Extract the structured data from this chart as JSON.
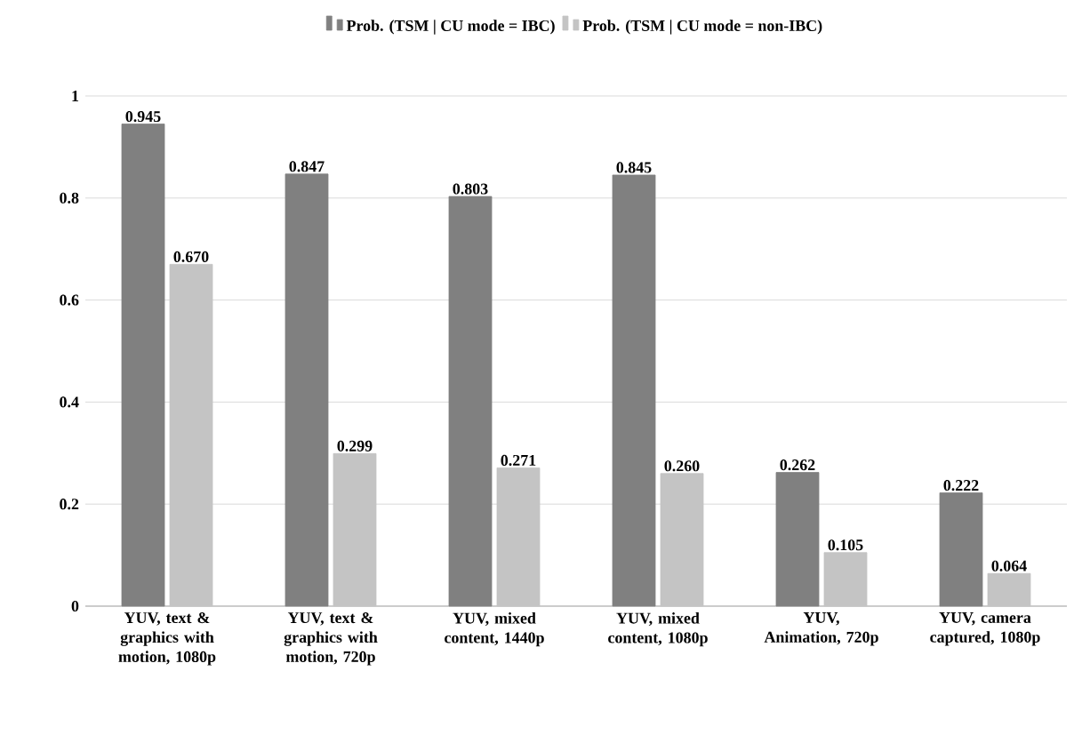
{
  "chart_data": {
    "type": "bar",
    "categories": [
      "YUV, text & graphics with motion, 1080p",
      "YUV, text & graphics with motion, 720p",
      "YUV, mixed content, 1440p",
      "YUV, mixed content, 1080p",
      "YUV, Animation, 720p",
      "YUV, camera captured, 1080p"
    ],
    "series": [
      {
        "name": "Prob. (TSM | CU mode = IBC)",
        "color": "#808080",
        "values": [
          0.945,
          0.847,
          0.803,
          0.845,
          0.262,
          0.222
        ],
        "value_labels": [
          "0.945",
          "0.847",
          "0.803",
          "0.845",
          "0.262",
          "0.222"
        ]
      },
      {
        "name": "Prob. (TSM | CU mode = non-IBC)",
        "color": "#c4c4c4",
        "values": [
          0.67,
          0.299,
          0.271,
          0.26,
          0.105,
          0.064
        ],
        "value_labels": [
          "0.670",
          "0.299",
          "0.271",
          "0.260",
          "0.105",
          "0.064"
        ]
      }
    ],
    "ylim": [
      0,
      1
    ],
    "yticks": [
      0,
      0.2,
      0.4,
      0.6,
      0.8,
      1
    ],
    "grid": "y",
    "legend": "top"
  }
}
